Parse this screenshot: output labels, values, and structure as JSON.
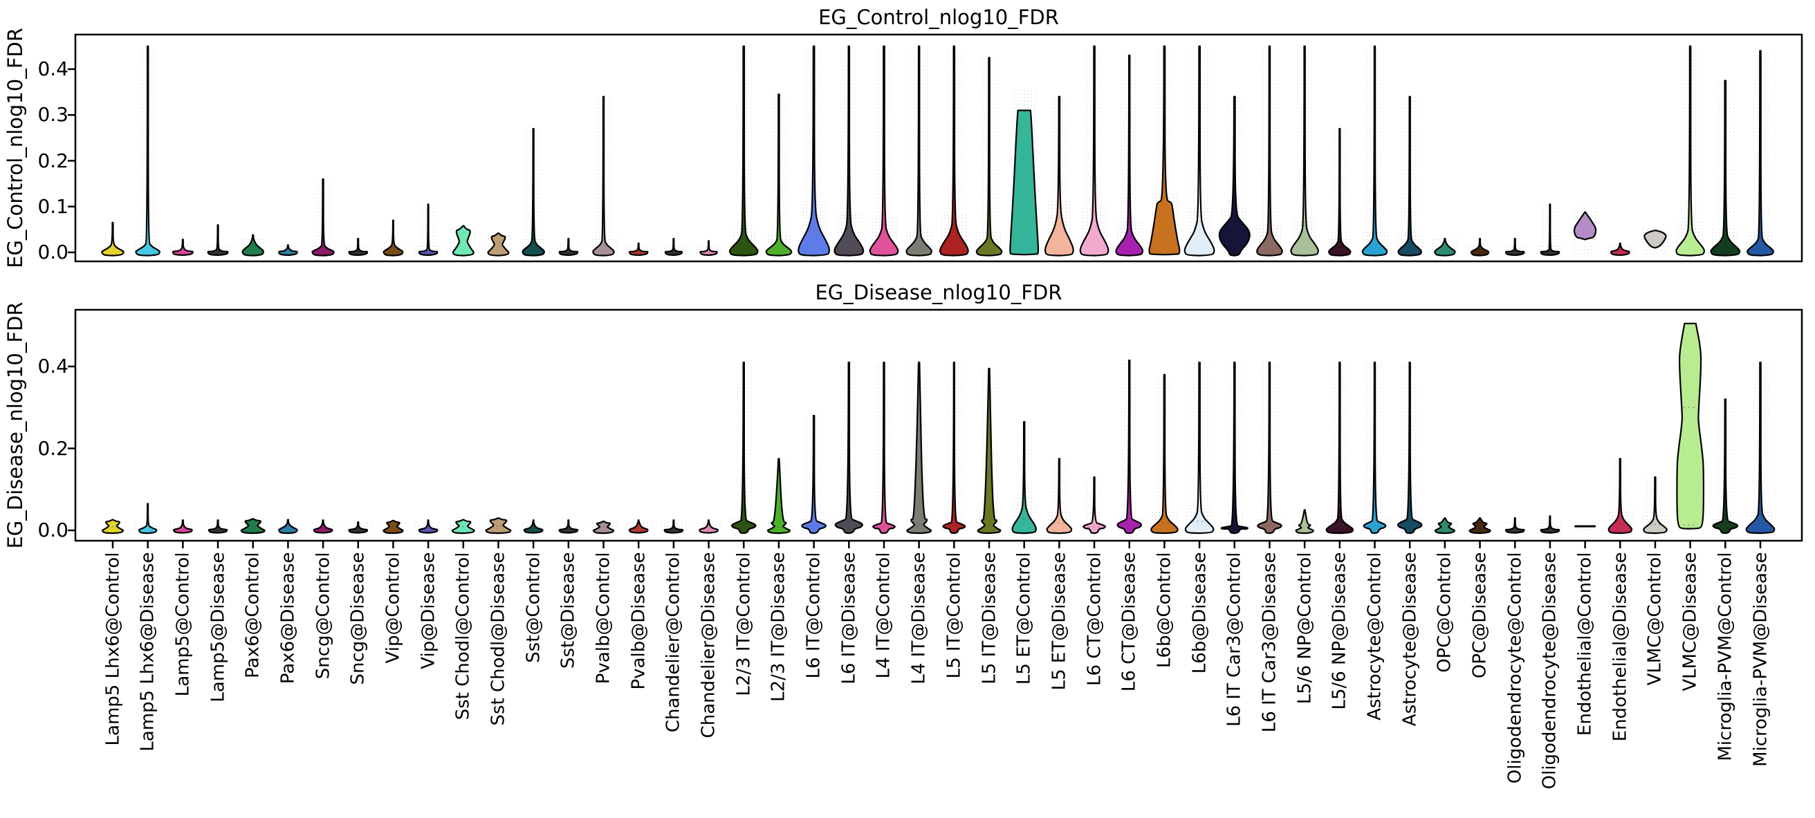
{
  "figure": {
    "background": "#ffffff",
    "axis_color": "#000000"
  },
  "chart_data": {
    "type": "violin",
    "grid": "off",
    "legend": "none",
    "panels": [
      {
        "title": "EG_Control_nlog10_FDR",
        "ylabel": "EG_Control_nlog10_FDR",
        "yticks": [
          0.0,
          0.1,
          0.2,
          0.3,
          0.4
        ],
        "ylim": [
          -0.02,
          0.475
        ],
        "x_tick_marks": false
      },
      {
        "title": "EG_Disease_nlog10_FDR",
        "ylabel": "EG_Disease_nlog10_FDR",
        "yticks": [
          0.0,
          0.2,
          0.4
        ],
        "ylim": [
          -0.025,
          0.538
        ],
        "x_tick_marks": true
      }
    ],
    "categories": [
      {
        "label": "Lamp5 Lhx6@Control",
        "color": "#E2D52C",
        "top": {
          "s": "td",
          "b": 0.02,
          "t": 0.065,
          "w": 0.62
        },
        "bot": {
          "s": "hg",
          "b": 0.022,
          "t": 0.026,
          "w": 0.62
        }
      },
      {
        "label": "Lamp5 Lhx6@Disease",
        "color": "#46C7E4",
        "top": {
          "s": "td",
          "b": 0.024,
          "t": 0.45,
          "w": 0.68
        },
        "bot": {
          "s": "td",
          "b": 0.014,
          "t": 0.065,
          "w": 0.5
        }
      },
      {
        "label": "Lamp5@Control",
        "color": "#D9459B",
        "top": {
          "s": "fl",
          "b": 0.006,
          "t": 0.028,
          "w": 0.6
        },
        "bot": {
          "s": "fl",
          "b": 0.008,
          "t": 0.025,
          "w": 0.55
        }
      },
      {
        "label": "Lamp5@Disease",
        "color": "#333333",
        "top": {
          "s": "fl",
          "b": 0.005,
          "t": 0.06,
          "w": 0.6
        },
        "bot": {
          "s": "fl",
          "b": 0.006,
          "t": 0.025,
          "w": 0.55
        }
      },
      {
        "label": "Pax6@Control",
        "color": "#1F7D4B",
        "top": {
          "s": "td",
          "b": 0.03,
          "t": 0.038,
          "w": 0.6
        },
        "bot": {
          "s": "hg",
          "b": 0.024,
          "t": 0.028,
          "w": 0.7
        }
      },
      {
        "label": "Pax6@Disease",
        "color": "#2B7FA8",
        "top": {
          "s": "fl",
          "b": 0.006,
          "t": 0.016,
          "w": 0.55
        },
        "bot": {
          "s": "td",
          "b": 0.018,
          "t": 0.026,
          "w": 0.52
        }
      },
      {
        "label": "Sncg@Control",
        "color": "#8F1A66",
        "top": {
          "s": "td",
          "b": 0.018,
          "t": 0.16,
          "w": 0.62
        },
        "bot": {
          "s": "fl",
          "b": 0.01,
          "t": 0.025,
          "w": 0.55
        }
      },
      {
        "label": "Sncg@Disease",
        "color": "#333333",
        "top": {
          "s": "fl",
          "b": 0.004,
          "t": 0.03,
          "w": 0.55
        },
        "bot": {
          "s": "fl",
          "b": 0.006,
          "t": 0.02,
          "w": 0.55
        }
      },
      {
        "label": "Vip@Control",
        "color": "#7A4E15",
        "top": {
          "s": "td",
          "b": 0.02,
          "t": 0.07,
          "w": 0.55
        },
        "bot": {
          "s": "hg",
          "b": 0.02,
          "t": 0.024,
          "w": 0.58
        }
      },
      {
        "label": "Vip@Disease",
        "color": "#5B55B5",
        "top": {
          "s": "fl",
          "b": 0.005,
          "t": 0.105,
          "w": 0.55
        },
        "bot": {
          "s": "fl",
          "b": 0.008,
          "t": 0.025,
          "w": 0.55
        }
      },
      {
        "label": "Sst Chodl@Control",
        "color": "#6FE8B5",
        "top": {
          "s": "hg",
          "b": 0.05,
          "t": 0.058,
          "w": 0.62
        },
        "bot": {
          "s": "hg",
          "b": 0.022,
          "t": 0.026,
          "w": 0.66
        }
      },
      {
        "label": "Sst Chodl@Disease",
        "color": "#BD9E74",
        "top": {
          "s": "hg",
          "b": 0.036,
          "t": 0.042,
          "w": 0.62
        },
        "bot": {
          "s": "hg",
          "b": 0.026,
          "t": 0.03,
          "w": 0.74
        }
      },
      {
        "label": "Sst@Control",
        "color": "#14504E",
        "top": {
          "s": "td",
          "b": 0.03,
          "t": 0.27,
          "w": 0.62
        },
        "bot": {
          "s": "fl",
          "b": 0.01,
          "t": 0.025,
          "w": 0.55
        }
      },
      {
        "label": "Sst@Disease",
        "color": "#333333",
        "top": {
          "s": "fl",
          "b": 0.004,
          "t": 0.03,
          "w": 0.55
        },
        "bot": {
          "s": "fl",
          "b": 0.006,
          "t": 0.025,
          "w": 0.55
        }
      },
      {
        "label": "Pvalb@Control",
        "color": "#A78F99",
        "top": {
          "s": "td",
          "b": 0.03,
          "t": 0.34,
          "w": 0.6
        },
        "bot": {
          "s": "hg",
          "b": 0.018,
          "t": 0.022,
          "w": 0.6
        }
      },
      {
        "label": "Pvalb@Disease",
        "color": "#B23A31",
        "top": {
          "s": "fl",
          "b": 0.004,
          "t": 0.02,
          "w": 0.55
        },
        "bot": {
          "s": "fl",
          "b": 0.012,
          "t": 0.025,
          "w": 0.55
        }
      },
      {
        "label": "Chandelier@Control",
        "color": "#333333",
        "top": {
          "s": "fl",
          "b": 0.004,
          "t": 0.03,
          "w": 0.5
        },
        "bot": {
          "s": "fl",
          "b": 0.005,
          "t": 0.025,
          "w": 0.55
        }
      },
      {
        "label": "Chandelier@Disease",
        "color": "#E08AB4",
        "top": {
          "s": "fl",
          "b": 0.004,
          "t": 0.025,
          "w": 0.5
        },
        "bot": {
          "s": "fl",
          "b": 0.01,
          "t": 0.025,
          "w": 0.55
        }
      },
      {
        "label": "L2/3 IT@Control",
        "color": "#2C5410",
        "top": {
          "s": "td",
          "b": 0.05,
          "t": 0.45,
          "w": 0.8
        },
        "bot": {
          "s": "di",
          "b": 0.026,
          "t": 0.41,
          "w": 0.72
        }
      },
      {
        "label": "L2/3 IT@Disease",
        "color": "#4EB02A",
        "top": {
          "s": "td",
          "b": 0.034,
          "t": 0.345,
          "w": 0.72
        },
        "bot": {
          "s": "hg",
          "b": 0.02,
          "t": 0.175,
          "w": 0.66
        }
      },
      {
        "label": "L6 IT@Control",
        "color": "#5F7BE8",
        "top": {
          "s": "td",
          "b": 0.1,
          "t": 0.45,
          "w": 0.88
        },
        "bot": {
          "s": "di",
          "b": 0.025,
          "t": 0.28,
          "w": 0.72
        }
      },
      {
        "label": "L6 IT@Disease",
        "color": "#514B57",
        "top": {
          "s": "td",
          "b": 0.075,
          "t": 0.45,
          "w": 0.82
        },
        "bot": {
          "s": "di",
          "b": 0.03,
          "t": 0.41,
          "w": 0.82
        }
      },
      {
        "label": "L4 IT@Control",
        "color": "#E0539B",
        "top": {
          "s": "td",
          "b": 0.065,
          "t": 0.45,
          "w": 0.8
        },
        "bot": {
          "s": "di",
          "b": 0.02,
          "t": 0.41,
          "w": 0.66
        }
      },
      {
        "label": "L4 IT@Disease",
        "color": "#7C7D72",
        "top": {
          "s": "td",
          "b": 0.045,
          "t": 0.45,
          "w": 0.72
        },
        "bot": {
          "s": "hg",
          "b": 0.028,
          "t": 0.41,
          "w": 0.72
        }
      },
      {
        "label": "L5 IT@Control",
        "color": "#AD2321",
        "top": {
          "s": "td",
          "b": 0.075,
          "t": 0.45,
          "w": 0.8
        },
        "bot": {
          "s": "di",
          "b": 0.022,
          "t": 0.41,
          "w": 0.66
        }
      },
      {
        "label": "L5 IT@Disease",
        "color": "#6B7722",
        "top": {
          "s": "td",
          "b": 0.04,
          "t": 0.425,
          "w": 0.72
        },
        "bot": {
          "s": "hg",
          "b": 0.026,
          "t": 0.395,
          "w": 0.68
        }
      },
      {
        "label": "L5 ET@Control",
        "color": "#35B59A",
        "top": {
          "s": "tz",
          "b": 0.31,
          "t": 0.31,
          "w": 0.8
        },
        "bot": {
          "s": "td",
          "b": 0.07,
          "t": 0.265,
          "w": 0.68
        }
      },
      {
        "label": "L5 ET@Disease",
        "color": "#F2B59B",
        "top": {
          "s": "td",
          "b": 0.1,
          "t": 0.34,
          "w": 0.8
        },
        "bot": {
          "s": "td",
          "b": 0.045,
          "t": 0.175,
          "w": 0.7
        }
      },
      {
        "label": "L6 CT@Control",
        "color": "#F2A9CE",
        "top": {
          "s": "td",
          "b": 0.09,
          "t": 0.45,
          "w": 0.8
        },
        "bot": {
          "s": "di",
          "b": 0.02,
          "t": 0.13,
          "w": 0.66
        }
      },
      {
        "label": "L6 CT@Disease",
        "color": "#A821AF",
        "top": {
          "s": "td",
          "b": 0.06,
          "t": 0.43,
          "w": 0.76
        },
        "bot": {
          "s": "di",
          "b": 0.03,
          "t": 0.415,
          "w": 0.72
        }
      },
      {
        "label": "L6b@Control",
        "color": "#C8721F",
        "top": {
          "s": "tz",
          "b": 0.11,
          "t": 0.45,
          "w": 0.86
        },
        "bot": {
          "s": "td",
          "b": 0.045,
          "t": 0.38,
          "w": 0.76
        }
      },
      {
        "label": "L6b@Disease",
        "color": "#E1EDF7",
        "top": {
          "s": "td",
          "b": 0.085,
          "t": 0.45,
          "w": 0.84
        },
        "bot": {
          "s": "td",
          "b": 0.055,
          "t": 0.41,
          "w": 0.8
        }
      },
      {
        "label": "L6 IT Car3@Control",
        "color": "#151538",
        "top": {
          "s": "di",
          "b": 0.085,
          "t": 0.34,
          "w": 0.92
        },
        "bot": {
          "s": "di",
          "b": 0.012,
          "t": 0.41,
          "w": 0.8
        }
      },
      {
        "label": "L6 IT Car3@Disease",
        "color": "#8A6A62",
        "top": {
          "s": "td",
          "b": 0.055,
          "t": 0.45,
          "w": 0.72
        },
        "bot": {
          "s": "di",
          "b": 0.025,
          "t": 0.41,
          "w": 0.72
        }
      },
      {
        "label": "L5/6 NP@Control",
        "color": "#A9C09A",
        "top": {
          "s": "td",
          "b": 0.065,
          "t": 0.45,
          "w": 0.78
        },
        "bot": {
          "s": "hg",
          "b": 0.014,
          "t": 0.05,
          "w": 0.52
        }
      },
      {
        "label": "L5/6 NP@Disease",
        "color": "#3C1228",
        "top": {
          "s": "td",
          "b": 0.03,
          "t": 0.27,
          "w": 0.62
        },
        "bot": {
          "s": "td",
          "b": 0.035,
          "t": 0.41,
          "w": 0.76
        }
      },
      {
        "label": "Astrocyte@Control",
        "color": "#2BA3D2",
        "top": {
          "s": "td",
          "b": 0.04,
          "t": 0.45,
          "w": 0.7
        },
        "bot": {
          "s": "di",
          "b": 0.025,
          "t": 0.41,
          "w": 0.66
        }
      },
      {
        "label": "Astrocyte@Disease",
        "color": "#174A60",
        "top": {
          "s": "td",
          "b": 0.035,
          "t": 0.34,
          "w": 0.66
        },
        "bot": {
          "s": "di",
          "b": 0.03,
          "t": 0.41,
          "w": 0.72
        }
      },
      {
        "label": "OPC@Control",
        "color": "#2E8B72",
        "top": {
          "s": "td",
          "b": 0.025,
          "t": 0.03,
          "w": 0.58
        },
        "bot": {
          "s": "hg",
          "b": 0.018,
          "t": 0.03,
          "w": 0.58
        }
      },
      {
        "label": "OPC@Disease",
        "color": "#46290E",
        "top": {
          "s": "td",
          "b": 0.015,
          "t": 0.03,
          "w": 0.5
        },
        "bot": {
          "s": "hg",
          "b": 0.018,
          "t": 0.03,
          "w": 0.62
        }
      },
      {
        "label": "Oligodendrocyte@Control",
        "color": "#333333",
        "top": {
          "s": "fl",
          "b": 0.004,
          "t": 0.03,
          "w": 0.55
        },
        "bot": {
          "s": "fl",
          "b": 0.005,
          "t": 0.03,
          "w": 0.55
        }
      },
      {
        "label": "Oligodendrocyte@Disease",
        "color": "#333333",
        "top": {
          "s": "fl",
          "b": 0.004,
          "t": 0.105,
          "w": 0.55
        },
        "bot": {
          "s": "fl",
          "b": 0.005,
          "t": 0.035,
          "w": 0.55
        }
      },
      {
        "label": "Endothelial@Control",
        "color": "#B48CC8",
        "top": {
          "s": "fd",
          "b0": 0.028,
          "b": 0.088,
          "ap": 0.38,
          "w": 0.66
        },
        "bot": {
          "s": "ln",
          "y": 0.01,
          "w": 0.6
        }
      },
      {
        "label": "Endothelial@Disease",
        "color": "#C62D55",
        "top": {
          "s": "fl",
          "b": 0.008,
          "t": 0.02,
          "w": 0.55
        },
        "bot": {
          "s": "td",
          "b": 0.045,
          "t": 0.175,
          "w": 0.66
        }
      },
      {
        "label": "VLMC@Control",
        "color": "#CDCAC4",
        "top": {
          "s": "fd",
          "b0": 0.01,
          "b": 0.048,
          "ap": 0.72,
          "w": 0.66
        },
        "bot": {
          "s": "td",
          "b": 0.035,
          "t": 0.13,
          "w": 0.66
        }
      },
      {
        "label": "VLMC@Disease",
        "color": "#B7EC91",
        "top": {
          "s": "td",
          "b": 0.06,
          "t": 0.45,
          "w": 0.8
        },
        "bot": {
          "s": "bw",
          "w": 0.76
        }
      },
      {
        "label": "Microglia-PVM@Control",
        "color": "#143D20",
        "top": {
          "s": "td",
          "b": 0.045,
          "t": 0.375,
          "w": 0.82
        },
        "bot": {
          "s": "di",
          "b": 0.025,
          "t": 0.32,
          "w": 0.74
        }
      },
      {
        "label": "Microglia-PVM@Disease",
        "color": "#2558A5",
        "top": {
          "s": "td",
          "b": 0.038,
          "t": 0.44,
          "w": 0.74
        },
        "bot": {
          "s": "td",
          "b": 0.05,
          "t": 0.41,
          "w": 0.8
        }
      }
    ]
  }
}
